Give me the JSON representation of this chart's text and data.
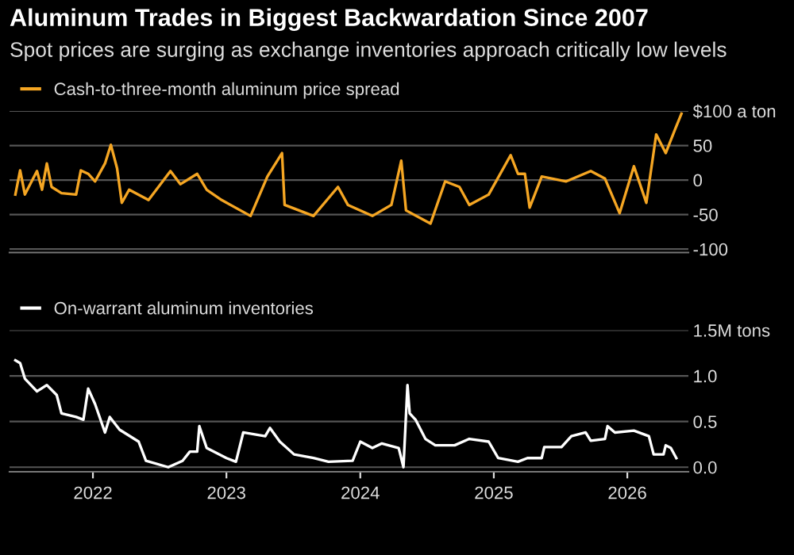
{
  "chart_data": [
    {
      "type": "line",
      "title": "Aluminum Trades in Biggest Backwardation Since 2007",
      "subtitle": "Spot prices are surging as exchange inventories approach critically low levels",
      "series": [
        {
          "name": "Cash-to-three-month aluminum price spread",
          "color": "#f5a623",
          "x": [
            "2021-12-01",
            "2021-12-14",
            "2021-12-27",
            "2022-01-29",
            "2022-02-12",
            "2022-02-25",
            "2022-03-10",
            "2022-04-06",
            "2022-05-16",
            "2022-05-29",
            "2022-06-18",
            "2022-07-07",
            "2022-08-03",
            "2022-08-19",
            "2022-09-05",
            "2022-09-18",
            "2022-10-08",
            "2022-11-30",
            "2023-01-29",
            "2023-02-25",
            "2023-04-12",
            "2023-05-08",
            "2023-06-18",
            "2023-09-05",
            "2023-10-21",
            "2023-11-30",
            "2023-12-07",
            "2024-02-24",
            "2024-05-01",
            "2024-05-28",
            "2024-08-03",
            "2024-09-24",
            "2024-10-21",
            "2024-11-03",
            "2025-01-09",
            "2025-02-18",
            "2025-03-29",
            "2025-04-25",
            "2025-06-17",
            "2025-08-16",
            "2025-09-05",
            "2025-09-24",
            "2025-10-07",
            "2025-11-09",
            "2026-01-15",
            "2026-03-23",
            "2026-05-01",
            "2026-06-10",
            "2026-07-19",
            "2026-08-22",
            "2026-09-18",
            "2026-10-14",
            "2026-11-09",
            "2026-11-26"
          ],
          "values": [
            -21,
            14,
            -21,
            13,
            -14,
            24,
            -10,
            -19,
            -21,
            14,
            9,
            -2,
            24,
            51,
            17,
            -33,
            -14,
            -29,
            13,
            -6,
            9,
            -14,
            -29,
            -52,
            5,
            39,
            -36,
            -52,
            -10,
            -36,
            -52,
            -36,
            28,
            -44,
            -63,
            -2,
            -10,
            -36,
            -21,
            36,
            9,
            9,
            -40,
            5,
            -2,
            13,
            2,
            -48,
            20,
            -33,
            66,
            39,
            74,
            96
          ]
        }
      ],
      "xlim": [
        "2021-11-15",
        "2026-12-15"
      ],
      "ylim": [
        -105,
        100
      ],
      "yticks": [
        {
          "value": 100,
          "label": "$100 a ton"
        },
        50,
        0,
        -50,
        -100
      ],
      "grid": "y",
      "legend": "top left",
      "tick_labels": "y"
    },
    {
      "type": "line",
      "series": [
        {
          "name": "On-warrant aluminum inventories",
          "color": "#ffffff",
          "x": [
            "2021-12-01",
            "2021-12-14",
            "2021-12-27",
            "2022-01-29",
            "2022-02-25",
            "2022-03-24",
            "2022-04-06",
            "2022-05-16",
            "2022-06-05",
            "2022-06-18",
            "2022-07-07",
            "2022-08-03",
            "2022-08-16",
            "2022-09-12",
            "2022-11-03",
            "2022-11-23",
            "2023-01-23",
            "2023-03-03",
            "2023-03-23",
            "2023-04-12",
            "2023-04-18",
            "2023-05-08",
            "2023-07-01",
            "2023-07-27",
            "2023-08-16",
            "2023-10-15",
            "2023-10-28",
            "2023-11-24",
            "2024-01-02",
            "2024-02-24",
            "2024-04-05",
            "2024-06-10",
            "2024-07-01",
            "2024-08-03",
            "2024-08-29",
            "2024-10-14",
            "2024-10-27",
            "2024-11-07",
            "2024-11-13",
            "2024-11-29",
            "2024-12-26",
            "2025-01-22",
            "2025-03-16",
            "2025-04-25",
            "2025-06-17",
            "2025-07-13",
            "2025-09-05",
            "2025-10-01",
            "2025-11-09",
            "2025-11-16",
            "2026-01-02",
            "2026-01-29",
            "2026-03-09",
            "2026-03-23",
            "2026-05-01",
            "2026-05-08",
            "2026-05-28",
            "2026-07-19",
            "2026-08-29",
            "2026-09-11",
            "2026-10-08",
            "2026-10-14",
            "2026-10-28",
            "2026-11-12"
          ],
          "values": [
            1.17,
            1.14,
            0.97,
            0.83,
            0.9,
            0.79,
            0.59,
            0.55,
            0.52,
            0.86,
            0.69,
            0.38,
            0.55,
            0.41,
            0.28,
            0.07,
            0.0,
            0.07,
            0.17,
            0.17,
            0.45,
            0.21,
            0.1,
            0.06,
            0.38,
            0.34,
            0.43,
            0.28,
            0.14,
            0.1,
            0.06,
            0.07,
            0.28,
            0.21,
            0.26,
            0.21,
            0.0,
            0.9,
            0.59,
            0.52,
            0.31,
            0.24,
            0.24,
            0.31,
            0.28,
            0.1,
            0.06,
            0.1,
            0.1,
            0.22,
            0.22,
            0.34,
            0.38,
            0.29,
            0.31,
            0.45,
            0.38,
            0.4,
            0.34,
            0.14,
            0.14,
            0.24,
            0.21,
            0.1
          ]
        }
      ],
      "xlim": [
        "2021-11-15",
        "2026-12-15"
      ],
      "ylim": [
        -0.05,
        1.5
      ],
      "xticks": [
        {
          "value": "2022-07-01",
          "label": "2022"
        },
        {
          "value": "2023-07-01",
          "label": "2023"
        },
        {
          "value": "2024-07-01",
          "label": "2024"
        },
        {
          "value": "2025-07-01",
          "label": "2025"
        },
        {
          "value": "2026-07-01",
          "label": "2026"
        }
      ],
      "yticks": [
        {
          "value": 1.5,
          "label": "1.5M tons"
        },
        {
          "value": 1.0,
          "label": "1.0"
        },
        {
          "value": 0.5,
          "label": "0.5"
        },
        {
          "value": 0.0,
          "label": "0.0"
        }
      ],
      "grid": "y",
      "legend": "top left"
    }
  ]
}
